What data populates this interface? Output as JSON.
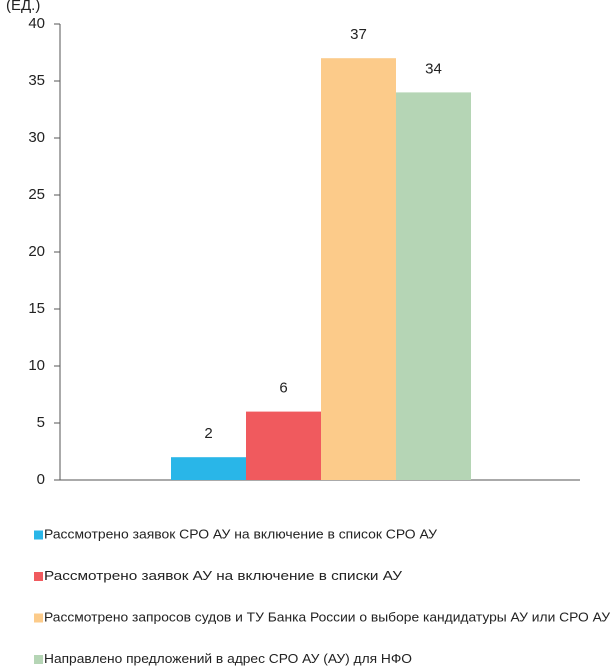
{
  "chart_data": {
    "type": "bar",
    "y_unit": "(ЕД.)",
    "categories": [
      null
    ],
    "series": [
      {
        "name": "Рассмотрено заявок СРО АУ на включение в список СРО АУ",
        "color": "#29b6e8",
        "values": [
          2
        ]
      },
      {
        "name": "Рассмотрено заявок АУ на включение в списки АУ",
        "color": "#f05a5e",
        "values": [
          6
        ]
      },
      {
        "name": "Рассмотрено запросов судов и ТУ Банка России о выборе кандидатуры АУ или СРО АУ",
        "color": "#fccb8a",
        "values": [
          37
        ]
      },
      {
        "name": "Направлено предложений в адрес СРО АУ (АУ) для НФО",
        "color": "#b5d5b5",
        "values": [
          34
        ]
      }
    ],
    "ylim": [
      0,
      40
    ],
    "yticks": [
      0,
      5,
      10,
      15,
      20,
      25,
      30,
      35,
      40
    ]
  }
}
